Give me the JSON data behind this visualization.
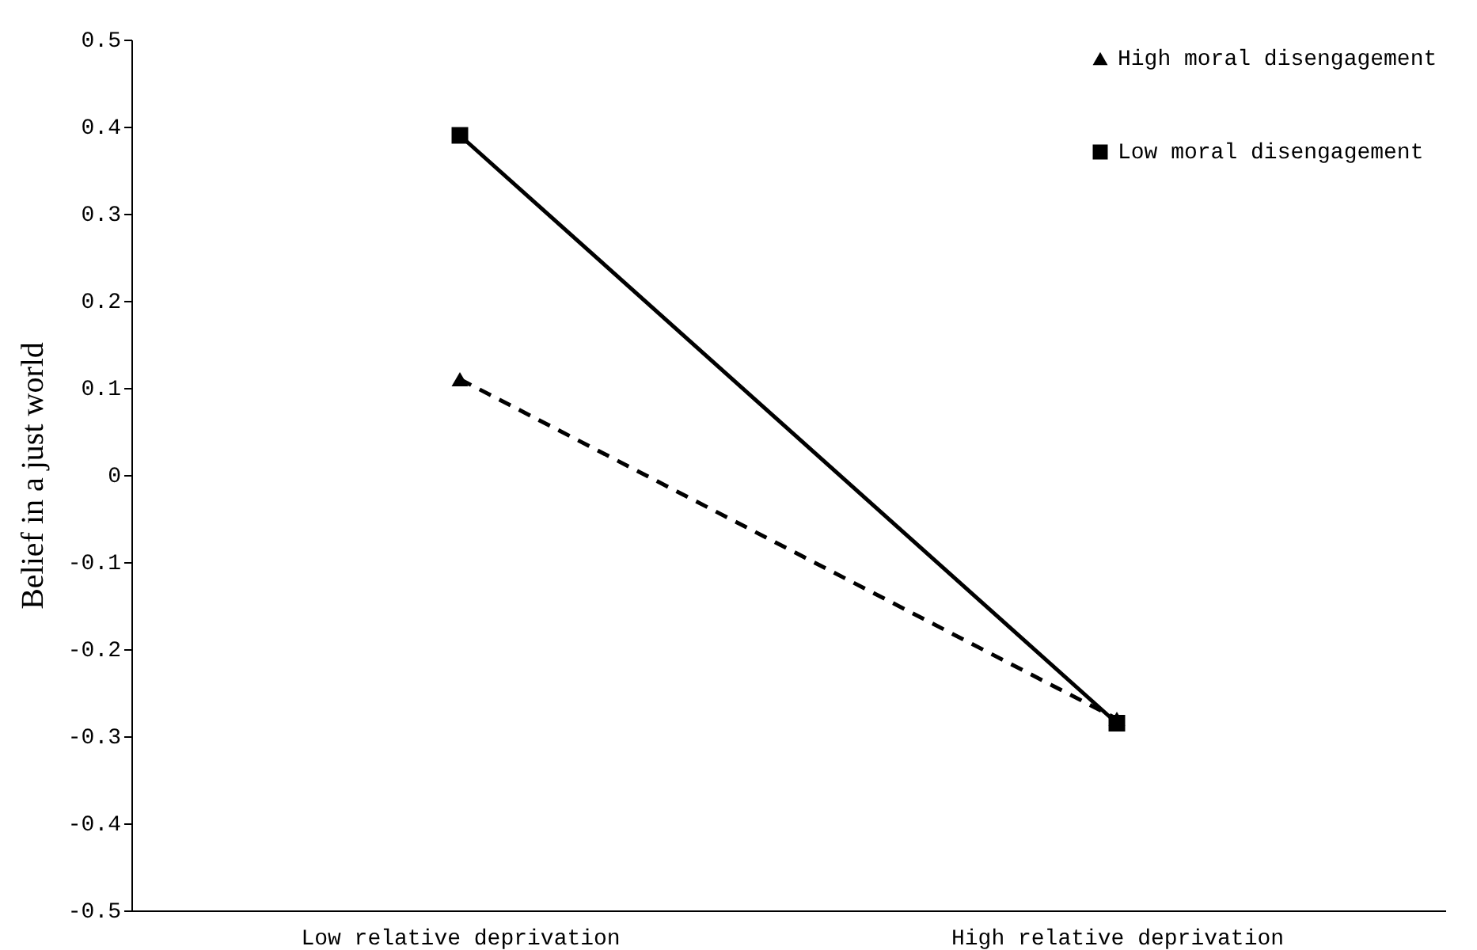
{
  "chart_data": {
    "type": "line",
    "ylabel": "Belief in a just world",
    "categories": [
      "Low relative deprivation",
      "High relative deprivation"
    ],
    "series": [
      {
        "name": "High moral disengagement",
        "color": "#000000",
        "values": [
          0.11,
          -0.28
        ],
        "marker": "triangle",
        "line_style": "dashed"
      },
      {
        "name": "Low moral disengagement",
        "color": "#000000",
        "values": [
          0.39,
          -0.285
        ],
        "marker": "square",
        "line_style": "solid"
      }
    ],
    "ylim": [
      -0.5,
      0.5
    ],
    "yticks": [
      -0.5,
      -0.4,
      -0.3,
      -0.2,
      -0.1,
      0,
      0.1,
      0.2,
      0.3,
      0.4,
      0.5
    ],
    "grid": false,
    "legend": "top right"
  }
}
